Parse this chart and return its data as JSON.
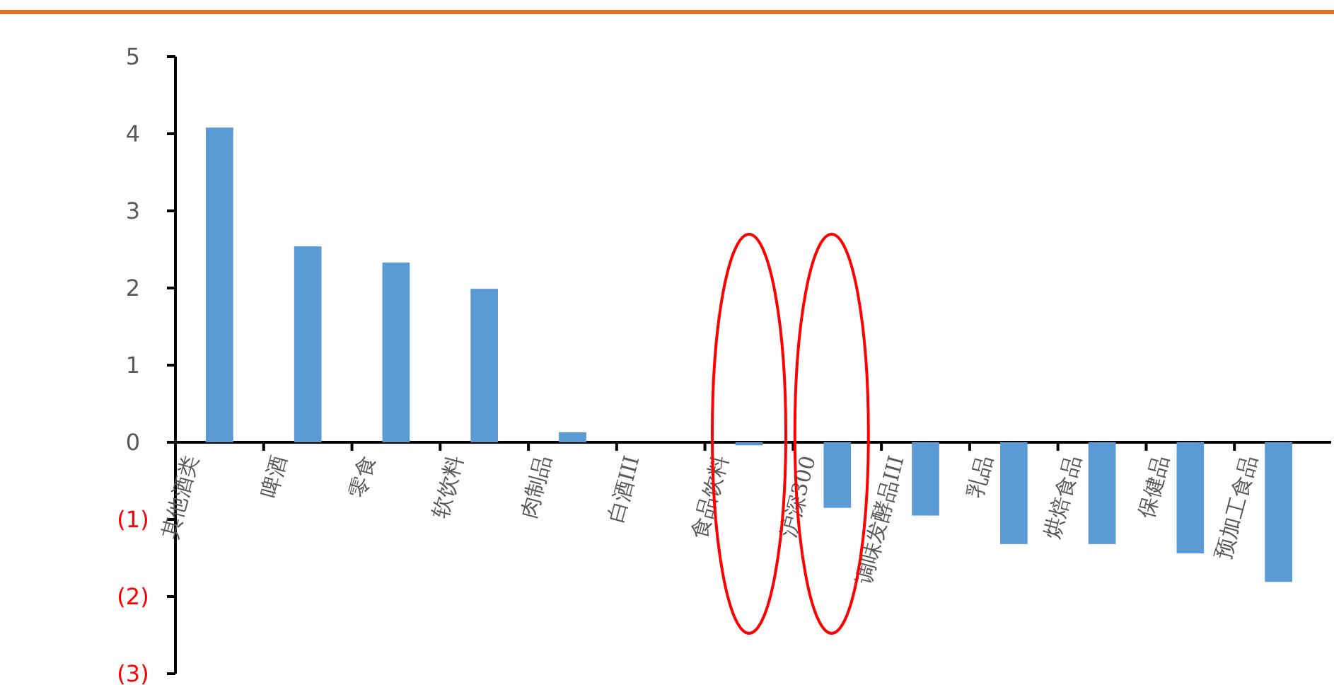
{
  "chart_data": {
    "type": "bar",
    "categories": [
      "其他酒类",
      "啤酒",
      "零食",
      "软饮料",
      "肉制品",
      "白酒III",
      "食品饮料",
      "沪深300",
      "调味发酵品III",
      "乳品",
      "烘焙食品",
      "保健品",
      "预加工食品"
    ],
    "values": [
      4.08,
      2.54,
      2.33,
      1.99,
      0.13,
      0,
      -0.04,
      -0.85,
      -0.95,
      -1.32,
      -1.32,
      -1.44,
      -1.81
    ],
    "color": "#5b9bd5",
    "ylim": [
      -3,
      5
    ],
    "yticks": [
      5,
      4,
      3,
      2,
      1,
      0,
      {
        "value": -1,
        "label": "(1)"
      },
      {
        "value": -2,
        "label": "(2)"
      },
      {
        "value": -3,
        "label": "(3)"
      }
    ],
    "grid": false
  }
}
